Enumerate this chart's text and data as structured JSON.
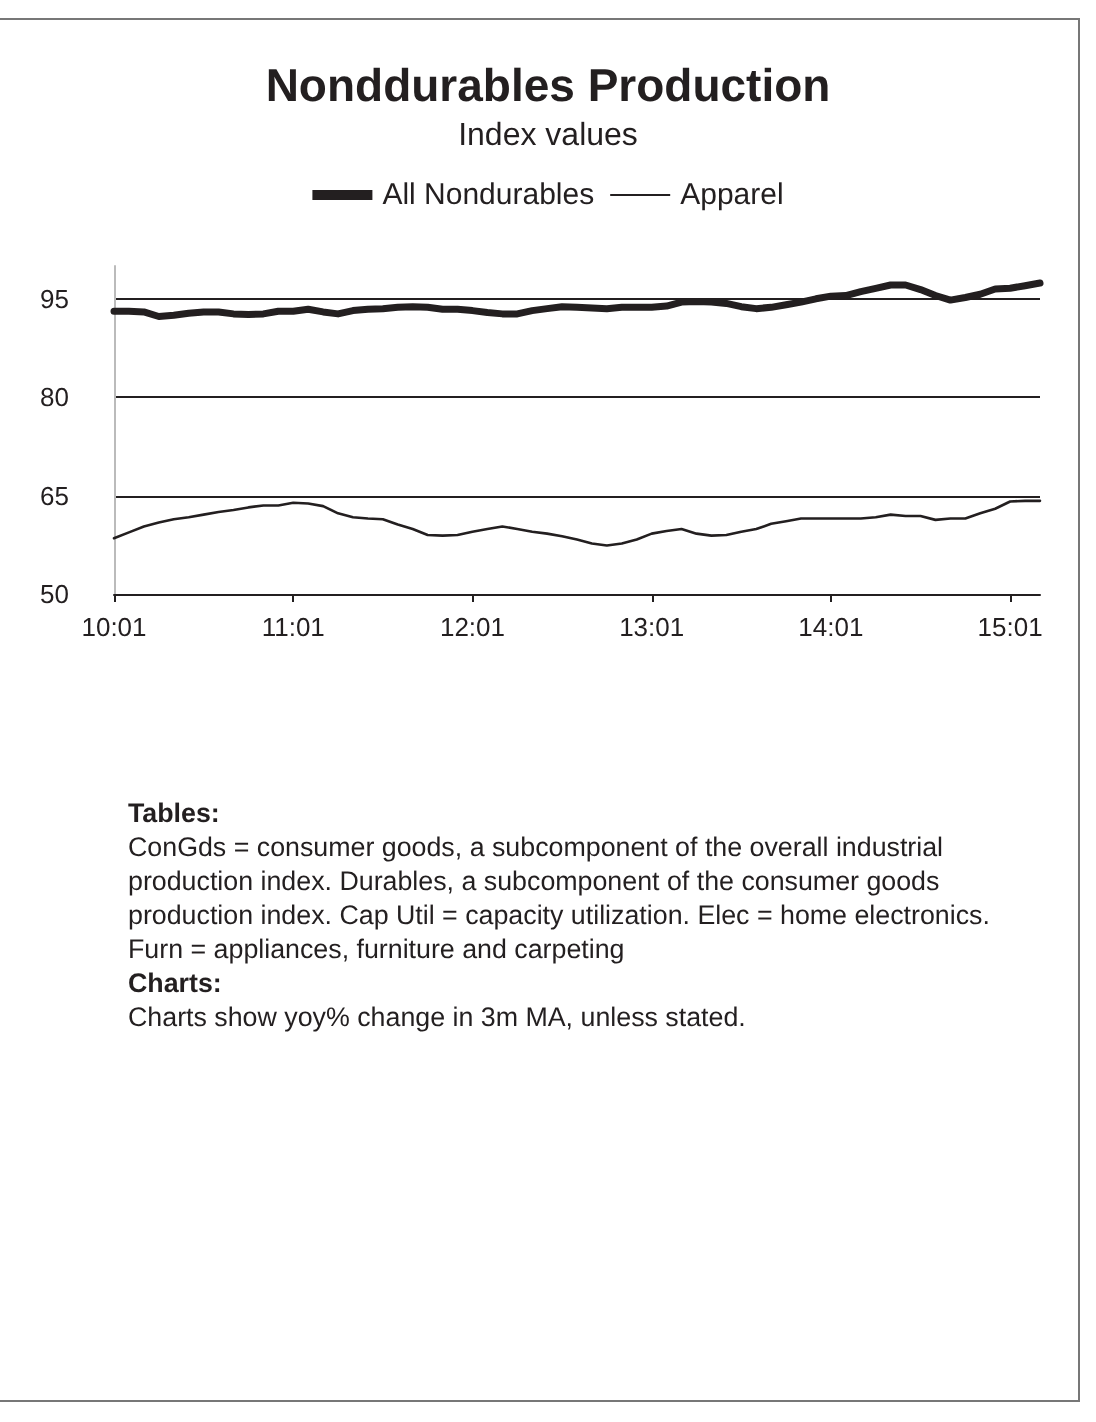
{
  "chart_data": {
    "type": "line",
    "title": "Nonddurables Production",
    "subtitle": "Index values",
    "categories": [
      "10:01",
      null,
      null,
      null,
      null,
      null,
      null,
      null,
      null,
      null,
      null,
      null,
      "11:01",
      null,
      null,
      null,
      null,
      null,
      null,
      null,
      null,
      null,
      null,
      null,
      "12:01",
      null,
      null,
      null,
      null,
      null,
      null,
      null,
      null,
      null,
      null,
      null,
      "13:01",
      null,
      null,
      null,
      null,
      null,
      null,
      null,
      null,
      null,
      null,
      null,
      "14:01",
      null,
      null,
      null,
      null,
      null,
      null,
      null,
      null,
      null,
      null,
      null,
      "15:01",
      null,
      null
    ],
    "series": [
      {
        "name": "All Nondurables",
        "color": "#231f20",
        "values": [
          93.1,
          93.1,
          93.0,
          92.3,
          92.5,
          92.8,
          93.0,
          93.0,
          92.7,
          92.6,
          92.7,
          93.1,
          93.1,
          93.4,
          93.0,
          92.7,
          93.2,
          93.4,
          93.5,
          93.7,
          93.8,
          93.7,
          93.4,
          93.4,
          93.2,
          92.9,
          92.7,
          92.7,
          93.2,
          93.5,
          93.8,
          93.7,
          93.6,
          93.5,
          93.7,
          93.7,
          93.7,
          93.9,
          94.5,
          94.6,
          94.5,
          94.3,
          93.8,
          93.5,
          93.7,
          94.1,
          94.5,
          95.0,
          95.4,
          95.5,
          96.1,
          96.6,
          97.1,
          97.1,
          96.4,
          95.5,
          94.8,
          95.2,
          95.7,
          96.5,
          96.6,
          97.0,
          97.4
        ]
      },
      {
        "name": "Apparel",
        "color": "#231f20",
        "values": [
          58.5,
          59.4,
          60.3,
          60.9,
          61.4,
          61.7,
          62.1,
          62.5,
          62.8,
          63.2,
          63.5,
          63.5,
          63.9,
          63.8,
          63.4,
          62.3,
          61.7,
          61.5,
          61.4,
          60.6,
          59.9,
          59.0,
          58.9,
          59.0,
          59.5,
          59.9,
          60.3,
          59.9,
          59.5,
          59.2,
          58.8,
          58.3,
          57.7,
          57.4,
          57.7,
          58.3,
          59.2,
          59.6,
          59.9,
          59.2,
          58.9,
          59.0,
          59.5,
          59.9,
          60.7,
          61.1,
          61.5,
          61.5,
          61.5,
          61.5,
          61.5,
          61.7,
          62.1,
          61.9,
          61.9,
          61.3,
          61.5,
          61.5,
          62.3,
          63.0,
          64.1,
          64.2,
          64.2
        ]
      }
    ],
    "ylim": [
      50,
      100
    ],
    "yticks": [
      50,
      65,
      80,
      95
    ],
    "grid": "y",
    "legend": "top",
    "marker": "none",
    "line_style": "solid",
    "annotations": [
      "Tables:",
      "ConGds = consumer goods, a subcomponent of the overall industrial production index. Durables, a subcomponent of the consumer goods production index. Cap Util = capacity utilization. Elec = home electronics. Furn = appliances, furniture and carpeting",
      "Charts:",
      "Charts show yoy% change in 3m MA, unless stated."
    ]
  }
}
